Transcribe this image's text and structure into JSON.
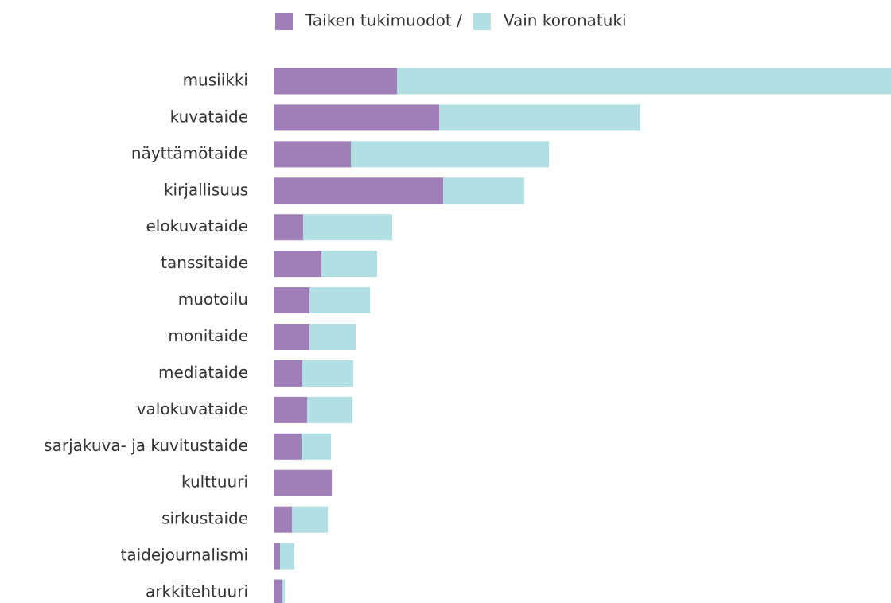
{
  "chart_data": {
    "type": "stacked_barh",
    "categories": [
      "musiikki",
      "kuvataide",
      "näyttämötaide",
      "kirjallisuus",
      "elokuvataide",
      "tanssitaide",
      "muotoilu",
      "monitaide",
      "mediataide",
      "valokuvataide",
      "sarjakuva- ja kuvitustaide",
      "kulttuuri",
      "sirkustaide",
      "taidejournalismi",
      "arkkitehtuuri"
    ],
    "series": [
      {
        "name": "Taiken tukimuodot /",
        "color": "#a07fb8",
        "values": [
          155,
          208,
          97,
          213,
          37,
          60,
          45,
          45,
          36,
          42,
          35,
          73,
          23,
          8,
          11
        ]
      },
      {
        "name": "Vain koronatuki",
        "color": "#b2dfe3",
        "values": [
          621,
          253,
          249,
          102,
          112,
          70,
          76,
          59,
          64,
          57,
          37,
          0,
          45,
          18,
          3
        ]
      }
    ],
    "xlim": [
      0,
      776
    ]
  }
}
